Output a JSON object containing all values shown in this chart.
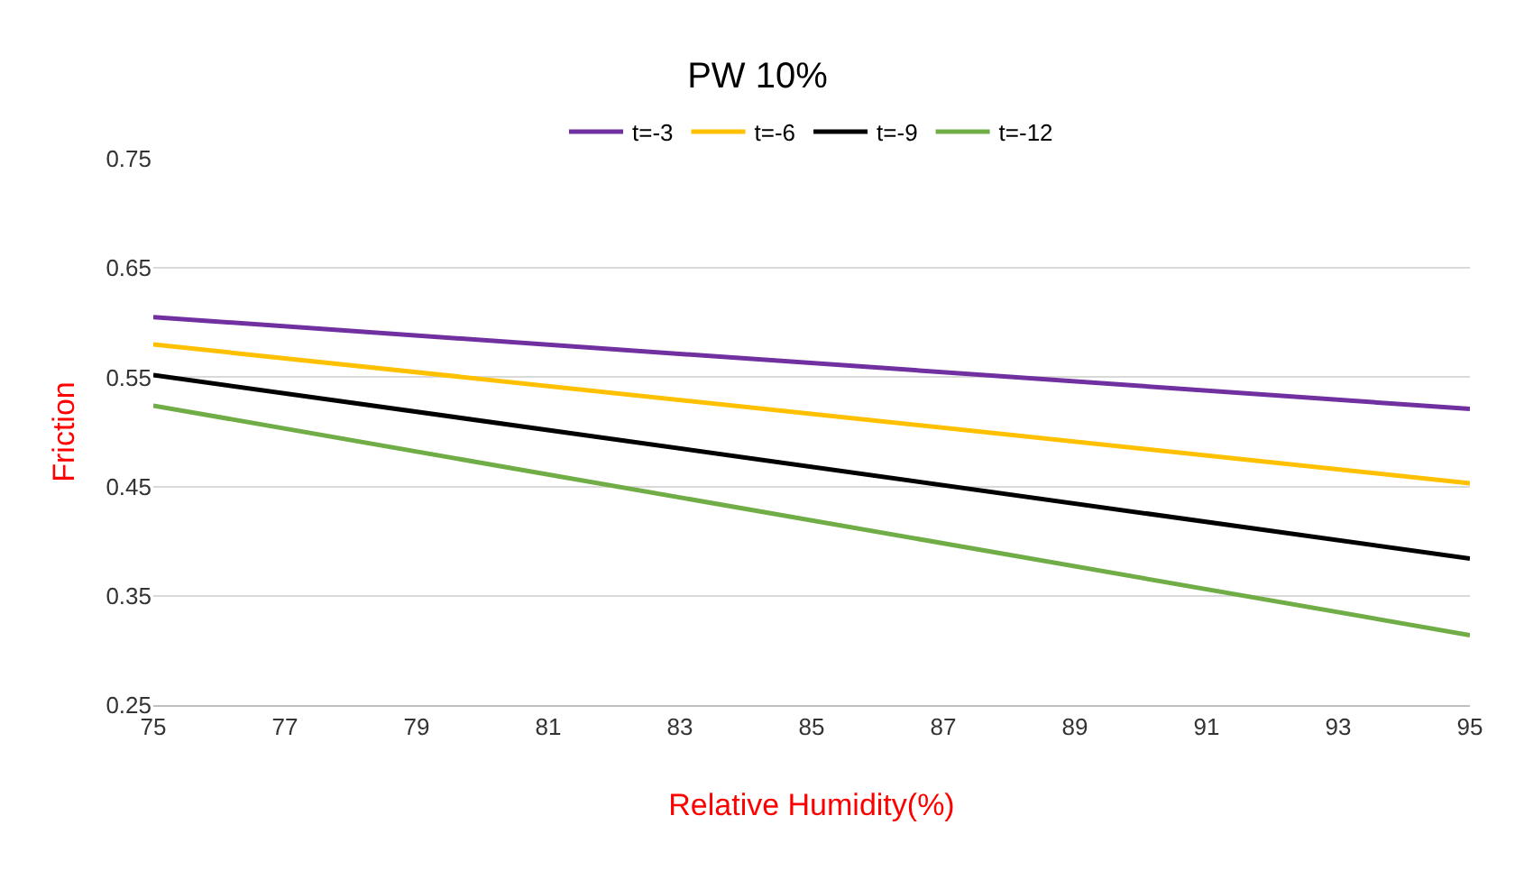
{
  "chart_data": {
    "type": "line",
    "title": "PW 10%",
    "xlabel": "Relative Humidity(%)",
    "ylabel": "Friction",
    "x": [
      75,
      95
    ],
    "series": [
      {
        "name": "t=-3",
        "color": "#7030a0",
        "values": [
          0.605,
          0.521
        ]
      },
      {
        "name": "t=-6",
        "color": "#ffc000",
        "values": [
          0.58,
          0.453
        ]
      },
      {
        "name": "t=-9",
        "color": "#000000",
        "values": [
          0.552,
          0.384
        ]
      },
      {
        "name": "t=-12",
        "color": "#70ad47",
        "values": [
          0.524,
          0.314
        ]
      }
    ],
    "xlim": [
      75,
      95
    ],
    "xticks": [
      75,
      77,
      79,
      81,
      83,
      85,
      87,
      89,
      91,
      93,
      95
    ],
    "ylim": [
      0.25,
      0.75
    ],
    "yticks": [
      {
        "value": 0.25,
        "label": "0.25"
      },
      {
        "value": 0.35,
        "label": "0.35"
      },
      {
        "value": 0.45,
        "label": "0.45"
      },
      {
        "value": 0.55,
        "label": "0.55"
      },
      {
        "value": 0.65,
        "label": "0.65"
      },
      {
        "value": 0.75,
        "label": "0.75"
      }
    ],
    "grid": "y",
    "legend": "top",
    "marker": "none",
    "line_style": "solid"
  }
}
